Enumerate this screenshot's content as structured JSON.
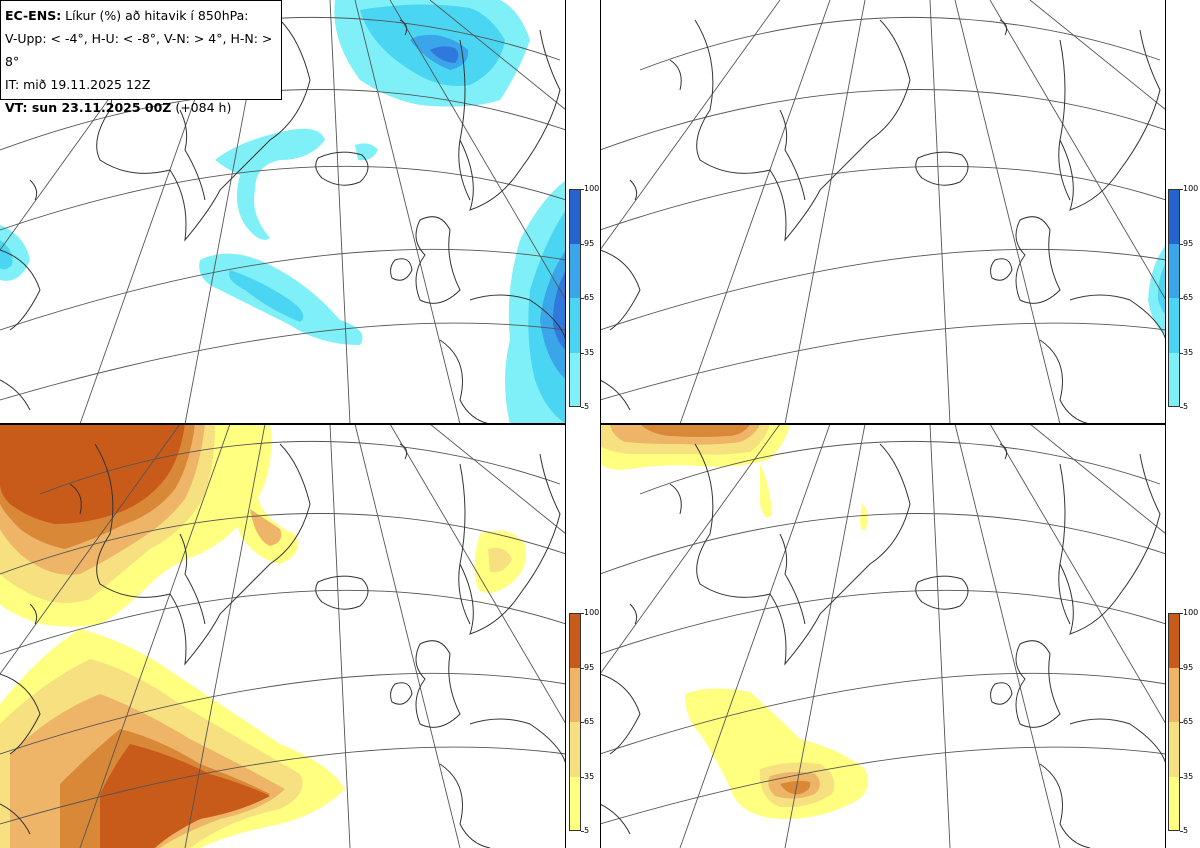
{
  "info": {
    "line1_bold": "EC-ENS:",
    "line1_rest": " Líkur (%) að hitavik í 850hPa:",
    "line2": "V-Upp: < -4°, H-U: < -8°, V-N: > 4°, H-N: > 8°",
    "line3": "IT: mið 19.11.2025 12Z",
    "line4_bold": "VT: sun 23.11.2025 00Z",
    "line4_rest": " (+084 h)"
  },
  "panels": [
    {
      "name": "V-Upp",
      "threshold": "< -4°",
      "palette": "cold"
    },
    {
      "name": "H-U",
      "threshold": "< -8°",
      "palette": "cold"
    },
    {
      "name": "V-N",
      "threshold": "> 4°",
      "palette": "warm"
    },
    {
      "name": "H-N",
      "threshold": "> 8°",
      "palette": "warm"
    }
  ],
  "colorbar_ticks": [
    "100",
    "95",
    "65",
    "35",
    "5"
  ],
  "colors": {
    "cold": [
      "#7ff0f7",
      "#4ad6f2",
      "#3aa5e8",
      "#2f78dc",
      "#2563cf"
    ],
    "warm": [
      "#ffff80",
      "#f6e080",
      "#eeb468",
      "#d98838",
      "#c85a1a"
    ],
    "coast": "#333333",
    "grid": "#555555"
  }
}
